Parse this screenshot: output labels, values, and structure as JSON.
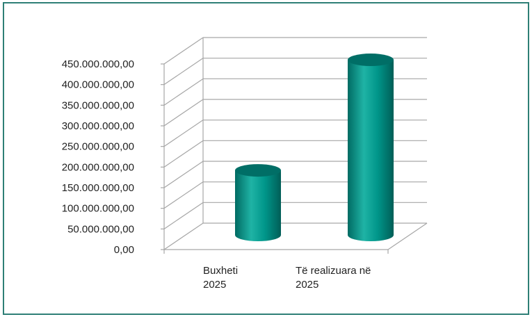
{
  "chart_data": {
    "type": "bar",
    "style": "3d-cylinder",
    "categories": [
      {
        "line1": "Buxheti",
        "line2": "2025"
      },
      {
        "line1": "Të realizuara në",
        "line2": "2025"
      }
    ],
    "values": [
      160000000,
      428000000
    ],
    "ylim": [
      0,
      450000000
    ],
    "ytick_labels": [
      "0,00",
      "50.000.000,00",
      "100.000.000,00",
      "150.000.000,00",
      "200.000.000,00",
      "250.000.000,00",
      "300.000.000,00",
      "350.000.000,00",
      "400.000.000,00",
      "450.000.000,00"
    ],
    "grid": true,
    "legend": "none",
    "colors": {
      "bar": "#00968a",
      "bar_dark": "#006e66",
      "bar_light": "#1fb3a5",
      "grid": "#a6a6a6",
      "frame": "#2e7f76"
    }
  }
}
